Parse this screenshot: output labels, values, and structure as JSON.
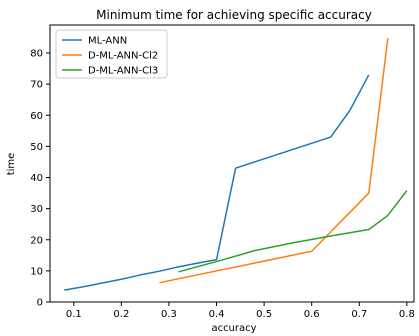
{
  "chart_data": {
    "type": "line",
    "title": "Minimum time for achieving specific accuracy",
    "xlabel": "accuracy",
    "ylabel": "time",
    "xlim": [
      0.05,
      0.815
    ],
    "ylim": [
      0,
      89
    ],
    "xticks": [
      0.1,
      0.2,
      0.3,
      0.4,
      0.5,
      0.6,
      0.7,
      0.8
    ],
    "xtick_labels": [
      "0.1",
      "0.2",
      "0.3",
      "0.4",
      "0.5",
      "0.6",
      "0.7",
      "0.8"
    ],
    "yticks": [
      0,
      10,
      20,
      30,
      40,
      50,
      60,
      70,
      80
    ],
    "ytick_labels": [
      "0",
      "10",
      "20",
      "30",
      "40",
      "50",
      "60",
      "70",
      "80"
    ],
    "grid": false,
    "legend_position": "top-left",
    "series": [
      {
        "name": "ML-ANN",
        "color": "#1f77b4",
        "x": [
          0.08,
          0.12,
          0.16,
          0.2,
          0.24,
          0.28,
          0.32,
          0.36,
          0.4,
          0.44,
          0.64,
          0.68,
          0.72
        ],
        "y": [
          3.8,
          4.9,
          6.1,
          7.3,
          8.7,
          9.9,
          11.3,
          12.5,
          13.6,
          43.0,
          53.0,
          61.5,
          73.0
        ]
      },
      {
        "name": "D-ML-ANN-Cl2",
        "color": "#ff7f0e",
        "x": [
          0.28,
          0.6,
          0.72,
          0.76
        ],
        "y": [
          6.2,
          16.3,
          35.0,
          84.8
        ]
      },
      {
        "name": "D-ML-ANN-Cl3",
        "color": "#2ca02c",
        "x": [
          0.32,
          0.4,
          0.48,
          0.56,
          0.64,
          0.72,
          0.76,
          0.8
        ],
        "y": [
          9.7,
          13.0,
          16.5,
          19.0,
          21.2,
          23.3,
          27.8,
          35.8
        ]
      }
    ]
  }
}
